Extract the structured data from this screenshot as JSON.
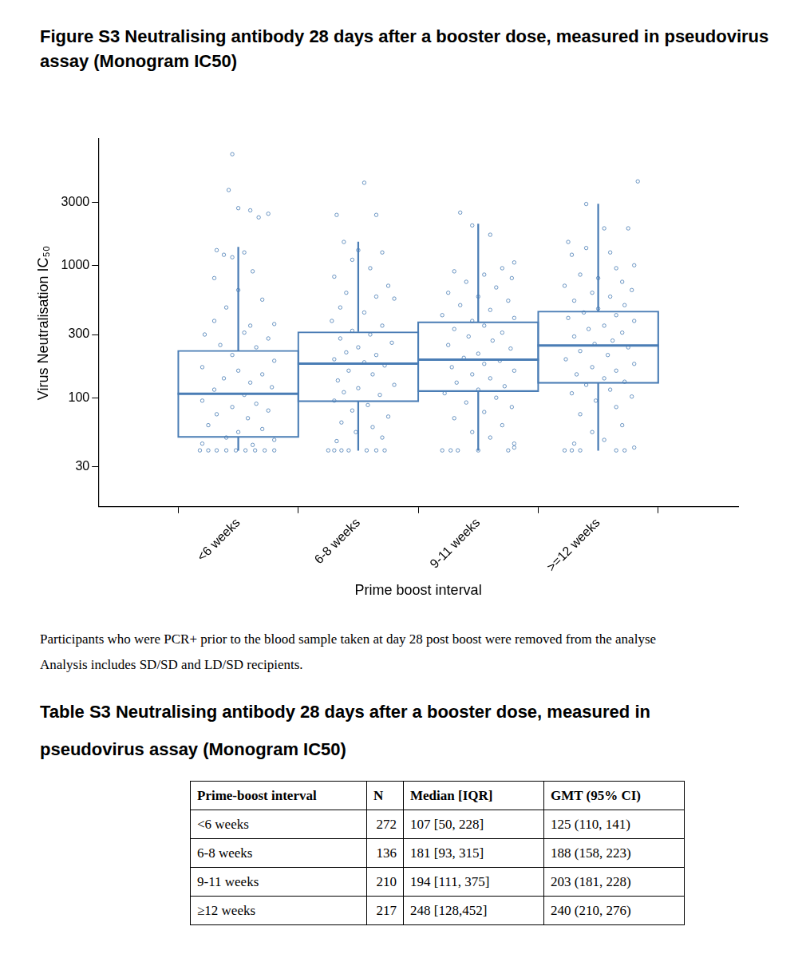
{
  "chart_data": {
    "type": "box",
    "title": "Figure S3 Neutralising antibody 28 days after a booster dose, measured in pseudovirus assay (Monogram IC50)",
    "x_label": "Prime boost interval",
    "y_label": "Virus Neutralisation IC₅₀",
    "categories": [
      "<6 weeks",
      "6-8 weeks",
      "9-11 weeks",
      ">=12 weeks"
    ],
    "xlim": [
      -0.5,
      3.5
    ],
    "log": "y",
    "ylim": [
      15,
      9000
    ],
    "yticks": [
      30,
      100,
      300,
      1000,
      3000
    ],
    "grid": false,
    "color": "#4a7db5",
    "boxes": [
      {
        "median": 107,
        "q1": 50,
        "q3": 228,
        "whisker_low": 40,
        "whisker_high": 1370
      },
      {
        "median": 181,
        "q1": 93,
        "q3": 315,
        "whisker_low": 40,
        "whisker_high": 1500
      },
      {
        "median": 194,
        "q1": 111,
        "q3": 375,
        "whisker_low": 40,
        "whisker_high": 2050
      },
      {
        "median": 248,
        "q1": 128,
        "q3": 452,
        "whisker_low": 40,
        "whisker_high": 2900
      }
    ],
    "points": [
      [
        [
          -0.05,
          6900
        ],
        [
          -0.08,
          3700
        ],
        [
          0.0,
          2700
        ],
        [
          0.1,
          2600
        ],
        [
          0.17,
          2300
        ],
        [
          0.25,
          2450
        ],
        [
          -0.18,
          1300
        ],
        [
          -0.12,
          1200
        ],
        [
          -0.05,
          1150
        ],
        [
          0.05,
          1250
        ],
        [
          0.12,
          900
        ],
        [
          -0.2,
          800
        ],
        [
          0.0,
          650
        ],
        [
          0.2,
          550
        ],
        [
          -0.1,
          480
        ],
        [
          -0.2,
          380
        ],
        [
          0.1,
          350
        ],
        [
          0.3,
          360
        ],
        [
          -0.28,
          300
        ],
        [
          0.05,
          310
        ],
        [
          0.25,
          280
        ],
        [
          -0.15,
          250
        ],
        [
          0.15,
          240
        ],
        [
          -0.05,
          210
        ],
        [
          0.3,
          190
        ],
        [
          -0.3,
          170
        ],
        [
          0.0,
          160
        ],
        [
          0.2,
          150
        ],
        [
          -0.12,
          140
        ],
        [
          0.1,
          130
        ],
        [
          0.28,
          120
        ],
        [
          -0.2,
          115
        ],
        [
          0.05,
          105
        ],
        [
          -0.3,
          95
        ],
        [
          0.15,
          90
        ],
        [
          -0.05,
          85
        ],
        [
          0.25,
          80
        ],
        [
          -0.18,
          75
        ],
        [
          0.08,
          70
        ],
        [
          -0.25,
          62
        ],
        [
          0.2,
          58
        ],
        [
          0.0,
          55
        ],
        [
          -0.1,
          50
        ],
        [
          0.3,
          48
        ],
        [
          -0.3,
          45
        ],
        [
          0.12,
          44
        ],
        [
          -0.32,
          40
        ],
        [
          -0.25,
          40
        ],
        [
          -0.18,
          40
        ],
        [
          -0.1,
          40
        ],
        [
          -0.02,
          40
        ],
        [
          0.06,
          40
        ],
        [
          0.14,
          40
        ],
        [
          0.22,
          40
        ],
        [
          0.3,
          40
        ]
      ],
      [
        [
          1.05,
          4200
        ],
        [
          0.82,
          2400
        ],
        [
          1.15,
          2400
        ],
        [
          0.88,
          1500
        ],
        [
          1.0,
          1300
        ],
        [
          1.2,
          1250
        ],
        [
          0.95,
          1100
        ],
        [
          1.1,
          950
        ],
        [
          0.8,
          820
        ],
        [
          1.25,
          700
        ],
        [
          0.9,
          620
        ],
        [
          1.15,
          580
        ],
        [
          1.3,
          560
        ],
        [
          0.85,
          480
        ],
        [
          1.05,
          440
        ],
        [
          0.78,
          380
        ],
        [
          1.2,
          350
        ],
        [
          0.95,
          320
        ],
        [
          1.1,
          300
        ],
        [
          0.85,
          280
        ],
        [
          1.28,
          260
        ],
        [
          1.0,
          240
        ],
        [
          0.9,
          220
        ],
        [
          1.15,
          210
        ],
        [
          0.8,
          195
        ],
        [
          1.05,
          185
        ],
        [
          1.22,
          175
        ],
        [
          0.92,
          160
        ],
        [
          1.12,
          150
        ],
        [
          0.83,
          135
        ],
        [
          1.3,
          125
        ],
        [
          1.0,
          118
        ],
        [
          0.88,
          110
        ],
        [
          1.18,
          105
        ],
        [
          0.8,
          95
        ],
        [
          1.08,
          88
        ],
        [
          0.95,
          80
        ],
        [
          1.25,
          72
        ],
        [
          0.86,
          65
        ],
        [
          1.12,
          60
        ],
        [
          0.98,
          55
        ],
        [
          1.2,
          50
        ],
        [
          0.82,
          47
        ],
        [
          0.75,
          40
        ],
        [
          0.8,
          40
        ],
        [
          0.86,
          40
        ],
        [
          0.92,
          40
        ],
        [
          1.07,
          40
        ],
        [
          1.15,
          40
        ],
        [
          1.22,
          40
        ]
      ],
      [
        [
          1.85,
          2500
        ],
        [
          1.95,
          2000
        ],
        [
          2.1,
          1700
        ],
        [
          2.3,
          1050
        ],
        [
          2.2,
          950
        ],
        [
          1.8,
          900
        ],
        [
          2.05,
          850
        ],
        [
          2.28,
          800
        ],
        [
          1.9,
          750
        ],
        [
          2.15,
          680
        ],
        [
          1.75,
          620
        ],
        [
          2.0,
          580
        ],
        [
          2.25,
          540
        ],
        [
          1.85,
          500
        ],
        [
          2.1,
          460
        ],
        [
          1.7,
          420
        ],
        [
          2.3,
          400
        ],
        [
          1.95,
          380
        ],
        [
          2.05,
          350
        ],
        [
          1.8,
          330
        ],
        [
          2.2,
          310
        ],
        [
          1.92,
          290
        ],
        [
          2.12,
          270
        ],
        [
          1.75,
          250
        ],
        [
          2.27,
          235
        ],
        [
          2.0,
          215
        ],
        [
          1.88,
          200
        ],
        [
          2.18,
          190
        ],
        [
          2.05,
          180
        ],
        [
          1.78,
          170
        ],
        [
          2.3,
          160
        ],
        [
          1.95,
          150
        ],
        [
          2.1,
          140
        ],
        [
          1.82,
          130
        ],
        [
          2.22,
          122
        ],
        [
          2.0,
          115
        ],
        [
          1.72,
          108
        ],
        [
          2.15,
          100
        ],
        [
          1.9,
          92
        ],
        [
          2.28,
          85
        ],
        [
          2.05,
          78
        ],
        [
          1.8,
          70
        ],
        [
          2.2,
          62
        ],
        [
          1.95,
          55
        ],
        [
          2.1,
          50
        ],
        [
          2.3,
          45
        ],
        [
          1.7,
          40
        ],
        [
          1.77,
          40
        ],
        [
          1.83,
          40
        ],
        [
          2.0,
          40
        ],
        [
          2.25,
          40
        ],
        [
          2.3,
          42
        ]
      ],
      [
        [
          3.33,
          4300
        ],
        [
          2.9,
          2900
        ],
        [
          3.05,
          1900
        ],
        [
          3.25,
          1900
        ],
        [
          2.75,
          1500
        ],
        [
          2.9,
          1350
        ],
        [
          3.1,
          1250
        ],
        [
          2.78,
          1200
        ],
        [
          3.3,
          1000
        ],
        [
          3.15,
          950
        ],
        [
          2.85,
          850
        ],
        [
          3.0,
          800
        ],
        [
          3.2,
          750
        ],
        [
          2.72,
          700
        ],
        [
          3.28,
          650
        ],
        [
          2.95,
          620
        ],
        [
          3.1,
          580
        ],
        [
          2.8,
          540
        ],
        [
          3.22,
          500
        ],
        [
          3.0,
          470
        ],
        [
          2.88,
          440
        ],
        [
          3.15,
          420
        ],
        [
          2.75,
          400
        ],
        [
          3.3,
          380
        ],
        [
          3.05,
          350
        ],
        [
          2.92,
          330
        ],
        [
          3.2,
          310
        ],
        [
          2.8,
          290
        ],
        [
          3.12,
          270
        ],
        [
          2.97,
          255
        ],
        [
          3.25,
          240
        ],
        [
          2.85,
          225
        ],
        [
          3.08,
          210
        ],
        [
          2.73,
          195
        ],
        [
          3.3,
          180
        ],
        [
          2.95,
          170
        ],
        [
          3.15,
          160
        ],
        [
          2.82,
          150
        ],
        [
          3.05,
          140
        ],
        [
          3.22,
          132
        ],
        [
          2.9,
          125
        ],
        [
          3.1,
          115
        ],
        [
          2.78,
          108
        ],
        [
          3.28,
          102
        ],
        [
          2.98,
          95
        ],
        [
          3.15,
          85
        ],
        [
          2.85,
          75
        ],
        [
          3.2,
          62
        ],
        [
          2.95,
          55
        ],
        [
          3.05,
          48
        ],
        [
          2.8,
          45
        ],
        [
          3.3,
          42
        ],
        [
          2.72,
          40
        ],
        [
          2.78,
          40
        ],
        [
          2.85,
          40
        ],
        [
          3.15,
          40
        ],
        [
          3.22,
          40
        ]
      ]
    ]
  },
  "notes": [
    "Participants who were PCR+ prior to the blood sample taken at day 28 post boost were removed from the analyse",
    "Analysis includes SD/SD and LD/SD recipients."
  ],
  "table": {
    "title": "Table S3 Neutralising antibody 28 days after a booster dose, measured in pseudovirus assay (Monogram IC50)",
    "header": [
      "Prime-boost interval",
      "N",
      "Median [IQR]",
      "GMT (95% CI)"
    ],
    "rows": [
      [
        "<6 weeks",
        272,
        "107 [50, 228]",
        "125 (110, 141)"
      ],
      [
        "6-8 weeks",
        136,
        "181 [93, 315]",
        "188 (158, 223)"
      ],
      [
        "9-11 weeks",
        210,
        "194 [111, 375]",
        "203 (181, 228)"
      ],
      [
        "≥12 weeks",
        217,
        "248 [128,452]",
        "240 (210, 276)"
      ]
    ]
  }
}
